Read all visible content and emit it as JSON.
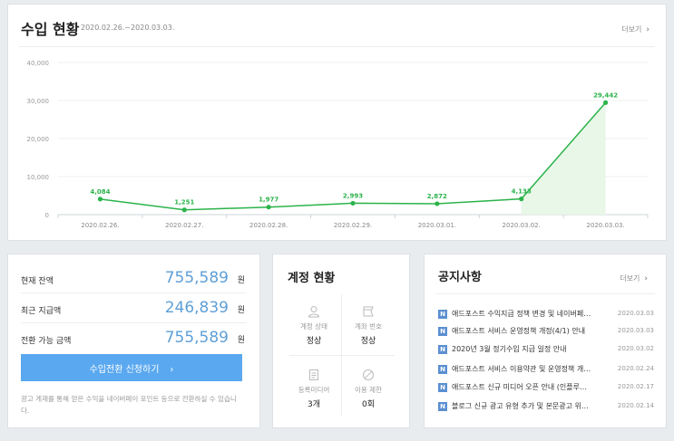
{
  "revenue": {
    "title": "수입 현황",
    "period": "2020.02.26.~2020.03.03.",
    "more": "더보기"
  },
  "chart_data": {
    "type": "area",
    "x": [
      "2020.02.26.",
      "2020.02.27.",
      "2020.02.28.",
      "2020.02.29.",
      "2020.03.01.",
      "2020.03.02.",
      "2020.03.03."
    ],
    "values": [
      4084,
      1251,
      1977,
      2993,
      2872,
      4133,
      29442
    ],
    "value_labels": [
      "4,084",
      "1,251",
      "1,977",
      "2,993",
      "2,872",
      "4,133",
      "29,442"
    ],
    "y_ticks": [
      "0",
      "10,000",
      "20,000",
      "30,000",
      "40,000"
    ],
    "ylim": [
      0,
      40000
    ],
    "grid": true,
    "line_color": "#2bb34a",
    "fill_color": "#e8f7e8"
  },
  "balance": {
    "rows": [
      {
        "label": "현재 잔액",
        "amount": "755,589",
        "unit": "원"
      },
      {
        "label": "최근 지급액",
        "amount": "246,839",
        "unit": "원"
      },
      {
        "label": "전환 가능 금액",
        "amount": "755,589",
        "unit": "원"
      }
    ],
    "button_label": "수입전환 신청하기",
    "note": "광고 게재를 통해 얻은 수익을 네이버페이 포인트 등으로 전환하실 수 있습니다."
  },
  "account": {
    "title": "계정 현황",
    "cells": [
      {
        "label": "계정 상태",
        "value": "정상",
        "icon": "person-icon"
      },
      {
        "label": "계좌 번호",
        "value": "정상",
        "icon": "card-icon"
      },
      {
        "label": "등록미디어",
        "value": "3개",
        "icon": "document-icon"
      },
      {
        "label": "이용 제한",
        "value": "0회",
        "icon": "prohibit-icon"
      }
    ]
  },
  "notices": {
    "title": "공지사항",
    "more": "더보기",
    "badge": "N",
    "items": [
      {
        "title": "애드포스트 수익지급 정책 변경 및 네이버페…",
        "date": "2020.03.03"
      },
      {
        "title": "애드포스트 서비스 운영정책 개정(4/1) 안내",
        "date": "2020.03.03"
      },
      {
        "title": "2020년 3월 정기수입 지급 일정 안내",
        "date": "2020.03.02"
      },
      {
        "title": "애드포스트 서비스 이용약관 및 운영정책 개…",
        "date": "2020.02.24"
      },
      {
        "title": "애드포스트 신규 미디어 오픈 안내 (인플루…",
        "date": "2020.02.17"
      },
      {
        "title": "블로그 신규 광고 유형 추가 및 본문광고 위…",
        "date": "2020.02.14"
      }
    ]
  },
  "colors": {
    "accent": "#5aa8ef",
    "amount": "#5f9fd6",
    "badge": "#5b8fd1"
  }
}
